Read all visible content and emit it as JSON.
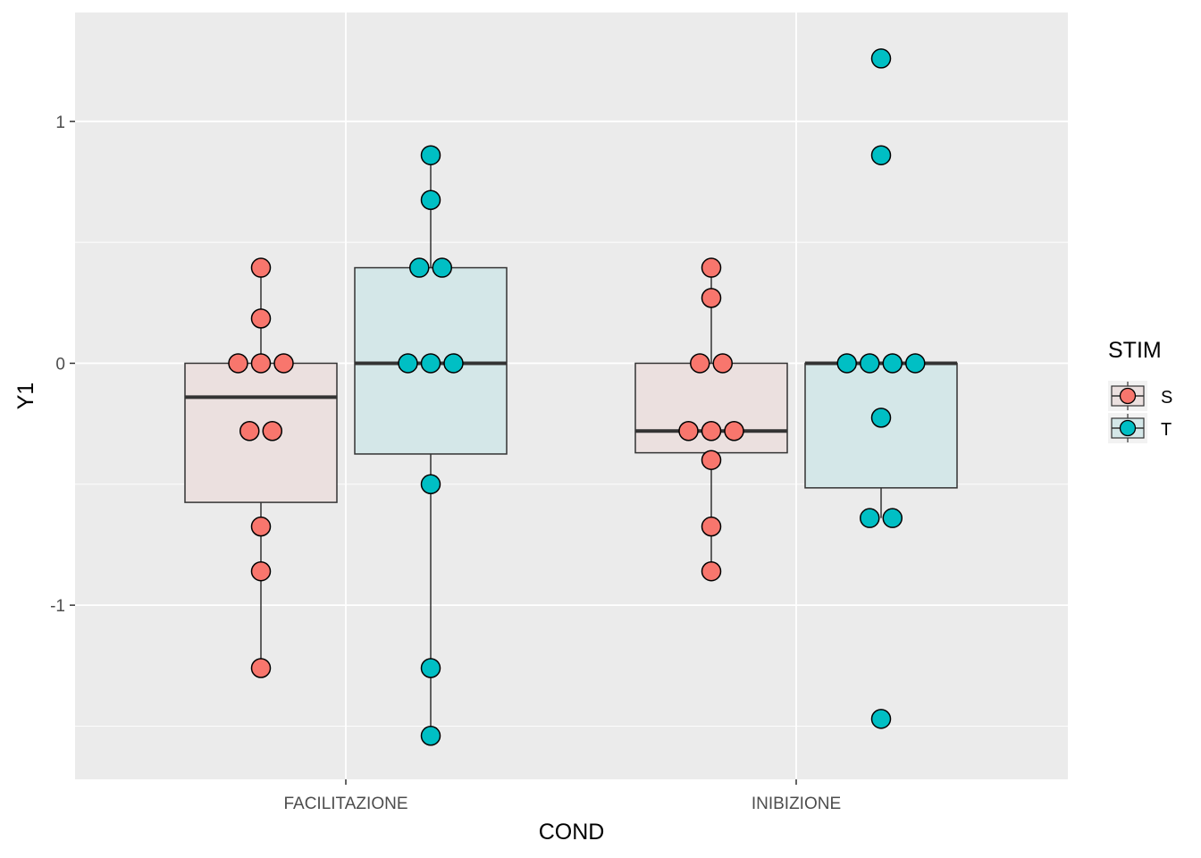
{
  "chart_data": {
    "type": "boxplot",
    "xlabel": "COND",
    "ylabel": "Y1",
    "categories": [
      "FACILITAZIONE",
      "INIBIZIONE"
    ],
    "ylim": [
      -1.72,
      1.45
    ],
    "y_ticks": [
      -1,
      0,
      1
    ],
    "y_tick_labels": [
      "-1",
      "0",
      "1"
    ],
    "grid": true,
    "legend": {
      "title": "STIM",
      "position": "right",
      "entries": [
        "S",
        "T"
      ]
    },
    "colors": {
      "S": "#F8766D",
      "T": "#00BFC4",
      "panel_bg": "#EBEBEB",
      "grid": "#FFFFFF"
    },
    "series": [
      {
        "name": "S",
        "boxes": [
          {
            "category": "FACILITAZIONE",
            "min": -1.26,
            "q1": -0.575,
            "median": -0.14,
            "q3": 0.0,
            "max": 0.395,
            "points": [
              0.395,
              0.185,
              0.0,
              0.0,
              0.0,
              -0.28,
              -0.28,
              -0.675,
              -0.86,
              -1.26
            ]
          },
          {
            "category": "INIBIZIONE",
            "min": -0.86,
            "q1": -0.37,
            "median": -0.28,
            "q3": 0.0,
            "max": 0.395,
            "points": [
              0.395,
              0.27,
              0.0,
              0.0,
              -0.28,
              -0.28,
              -0.28,
              -0.4,
              -0.675,
              -0.86
            ]
          }
        ]
      },
      {
        "name": "T",
        "boxes": [
          {
            "category": "FACILITAZIONE",
            "min": -1.54,
            "q1": -0.375,
            "median": 0.0,
            "q3": 0.395,
            "max": 0.86,
            "points": [
              0.86,
              0.675,
              0.395,
              0.395,
              0.0,
              0.0,
              0.0,
              -0.5,
              -1.26,
              -1.54
            ]
          },
          {
            "category": "INIBIZIONE",
            "min": -0.64,
            "q1": -0.515,
            "median": 0.0,
            "q3": 0.0,
            "max": 0.0,
            "points": [
              1.26,
              0.86,
              0.0,
              0.0,
              0.0,
              0.0,
              -0.225,
              -0.64,
              -0.64,
              -1.47
            ]
          }
        ]
      }
    ]
  }
}
